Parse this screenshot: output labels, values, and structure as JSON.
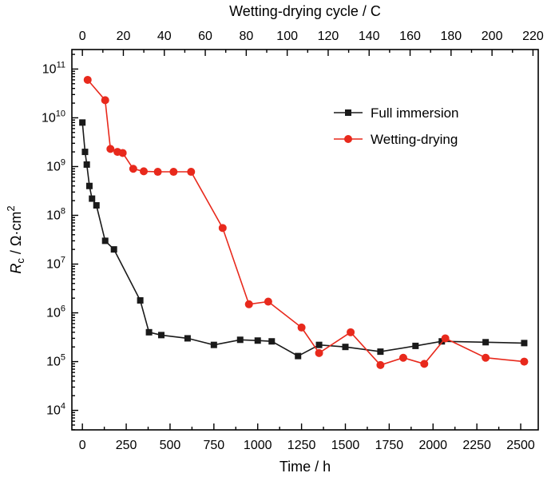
{
  "figure": {
    "background": "#ffffff",
    "axis_color": "#000000",
    "text_color": "#000000"
  },
  "chart_data": {
    "type": "line",
    "title": "",
    "top_axis_title": "Wetting-drying cycle / C",
    "bottom_axis_title": "Time / h",
    "y_axis_title_parts": {
      "var": "R",
      "sub": "c",
      "mid": " / Ω·cm",
      "sup": "2"
    },
    "x_bottom": {
      "min": -60,
      "max": 2600,
      "tick_start": 0,
      "tick_end": 2500,
      "tick_step": 250,
      "minor_step": 125
    },
    "x_top": {
      "hours_per_cycle": 11.682,
      "tick_start": 0,
      "tick_end": 220,
      "tick_step": 20,
      "minor_step": 10
    },
    "y_axis": {
      "scale": "log",
      "min_exp": 3.6,
      "max_exp": 11.4,
      "label_exp_start": 4,
      "label_exp_end": 11
    },
    "grid": "off",
    "legend": {
      "position": "inside-upper-right"
    },
    "series": [
      {
        "name": "Full immersion",
        "color": "#1a1a1a",
        "marker": "square",
        "x": [
          0,
          15,
          25,
          40,
          55,
          80,
          130,
          180,
          330,
          380,
          450,
          600,
          750,
          900,
          1000,
          1080,
          1230,
          1350,
          1500,
          1700,
          1900,
          2050,
          2300,
          2520
        ],
        "y": [
          8000000000.0,
          2000000000.0,
          1100000000.0,
          400000000.0,
          220000000.0,
          160000000.0,
          30000000.0,
          20000000.0,
          1800000.0,
          400000.0,
          350000.0,
          300000.0,
          220000.0,
          280000.0,
          270000.0,
          260000.0,
          130000.0,
          220000.0,
          200000.0,
          160000.0,
          210000.0,
          260000.0,
          250000.0,
          240000.0
        ]
      },
      {
        "name": "Wetting-drying",
        "color": "#e8291c",
        "marker": "circle",
        "x": [
          30,
          130,
          160,
          200,
          230,
          290,
          350,
          430,
          520,
          620,
          800,
          950,
          1060,
          1250,
          1350,
          1530,
          1700,
          1830,
          1950,
          2070,
          2300,
          2520
        ],
        "y": [
          60000000000.0,
          23000000000.0,
          2300000000.0,
          2000000000.0,
          1900000000.0,
          900000000.0,
          800000000.0,
          780000000.0,
          780000000.0,
          780000000.0,
          55000000.0,
          1500000.0,
          1700000.0,
          500000.0,
          150000.0,
          400000.0,
          85000.0,
          120000.0,
          90000.0,
          300000.0,
          120000.0,
          100000.0
        ]
      }
    ]
  }
}
